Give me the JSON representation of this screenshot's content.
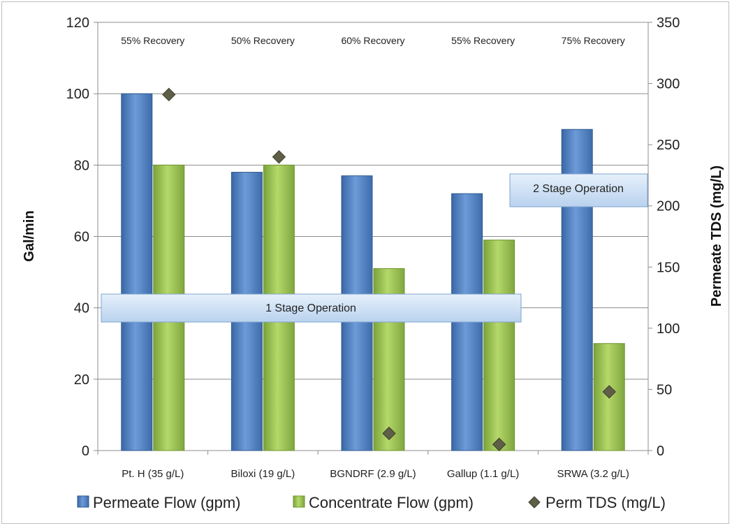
{
  "chart_data": {
    "type": "bar",
    "categories": [
      "Pt. H (35 g/L)",
      "Biloxi (19 g/L)",
      "BGNDRF (2.9 g/L)",
      "Gallup (1.1 g/L)",
      "SRWA (3.2 g/L)"
    ],
    "series": [
      {
        "name": "Permeate Flow (gpm)",
        "type": "bar",
        "axis": "left",
        "color": "#4f81bd",
        "values": [
          100,
          78,
          77,
          72,
          90
        ]
      },
      {
        "name": "Concentrate Flow (gpm)",
        "type": "bar",
        "axis": "left",
        "color": "#9bbb59",
        "values": [
          80,
          80,
          51,
          59,
          30
        ]
      },
      {
        "name": "Perm TDS (mg/L)",
        "type": "scatter",
        "axis": "right",
        "color": "#5f5f48",
        "values": [
          291,
          240,
          14,
          5,
          48
        ]
      }
    ],
    "recovery_labels": [
      "55% Recovery",
      "50% Recovery",
      "60% Recovery",
      "55% Recovery",
      "75% Recovery"
    ],
    "annotations": [
      "1 Stage Operation",
      "2 Stage Operation"
    ],
    "ylabel_left": "Gal/min",
    "ylabel_right": "Permeate TDS (mg/L)",
    "ylim_left": [
      0,
      120
    ],
    "ylim_right": [
      0,
      350
    ],
    "yticks_left": [
      "0",
      "20",
      "40",
      "60",
      "80",
      "100",
      "120"
    ],
    "yticks_right": [
      "0",
      "50",
      "100",
      "150",
      "200",
      "250",
      "300",
      "350"
    ],
    "grid": true,
    "legend_position": "bottom"
  }
}
